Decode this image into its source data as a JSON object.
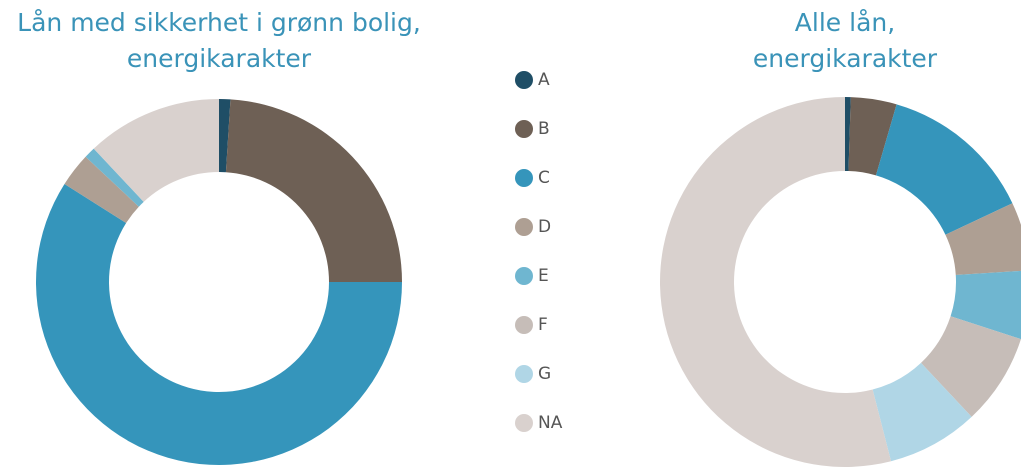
{
  "legend": {
    "categories": [
      "A",
      "B",
      "C",
      "D",
      "E",
      "F",
      "G",
      "NA"
    ],
    "colors": [
      "#1f4e66",
      "#6e6055",
      "#3595bb",
      "#ae9f93",
      "#6fb6d0",
      "#c6bdb8",
      "#b0d6e6",
      "#d9d1ce"
    ]
  },
  "chart_data": [
    {
      "type": "donut",
      "title": [
        "Lån med sikkerhet i grønn bolig,",
        "energikarakter"
      ],
      "values": [
        1,
        24,
        59,
        3,
        1,
        0,
        0,
        12
      ]
    },
    {
      "type": "donut",
      "title": [
        "Alle lån,",
        "energikarakter"
      ],
      "values": [
        0.5,
        4,
        13.5,
        6,
        6,
        8,
        8,
        54
      ]
    }
  ]
}
